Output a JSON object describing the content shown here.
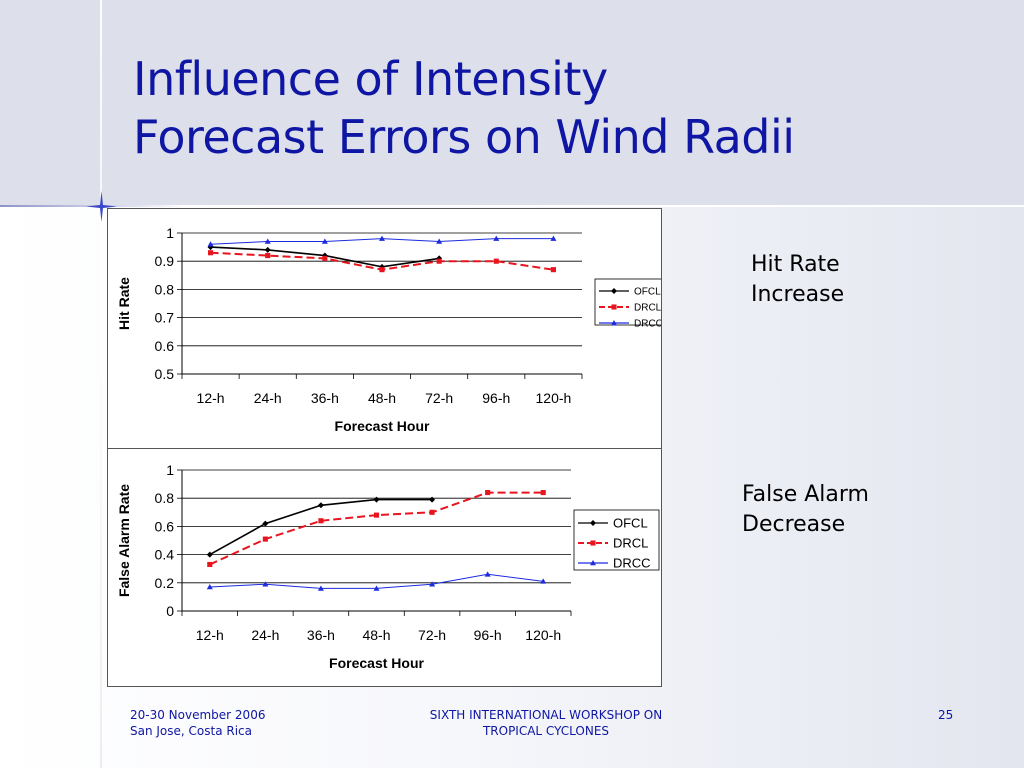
{
  "slide": {
    "title_line1": "Influence of Intensity",
    "title_line2": "Forecast Errors on Wind Radii",
    "note_hit_line1": "Hit Rate",
    "note_hit_line2": "Increase",
    "note_fa_line1": "False Alarm",
    "note_fa_line2": "Decrease",
    "footer_left_line1": "20-30 November 2006",
    "footer_left_line2": "San Jose, Costa Rica",
    "footer_center_line1": "SIXTH INTERNATIONAL WORKSHOP ON",
    "footer_center_line2": "TROPICAL CYCLONES",
    "page_number": "25"
  },
  "colors": {
    "title": "#0e16a3",
    "ofcl": "#000000",
    "drcl": "#e8141e",
    "drcc": "#1c2be0"
  },
  "chart_data": [
    {
      "type": "line",
      "title": "",
      "xlabel": "Forecast Hour",
      "ylabel": "Hit Rate",
      "categories": [
        "12-h",
        "24-h",
        "36-h",
        "48-h",
        "72-h",
        "96-h",
        "120-h"
      ],
      "ylim": [
        0.5,
        1
      ],
      "yticks": [
        0.5,
        0.6,
        0.7,
        0.8,
        0.9,
        1
      ],
      "ytick_labels": [
        "0.5",
        "0.6",
        "0.7",
        "0.8",
        "0.9",
        "1"
      ],
      "grid": true,
      "legend": "right",
      "series": [
        {
          "name": "OFCL",
          "values": [
            0.95,
            0.94,
            0.92,
            0.88,
            0.91,
            null,
            null
          ],
          "color": "#000000",
          "dash": "solid",
          "marker": "diamond"
        },
        {
          "name": "DRCL",
          "values": [
            0.93,
            0.92,
            0.91,
            0.87,
            0.9,
            0.9,
            0.87
          ],
          "color": "#e8141e",
          "dash": "dashed",
          "marker": "square"
        },
        {
          "name": "DRCC",
          "values": [
            0.96,
            0.97,
            0.97,
            0.98,
            0.97,
            0.98,
            0.98
          ],
          "color": "#1c2be0",
          "dash": "solid",
          "marker": "triangle"
        }
      ]
    },
    {
      "type": "line",
      "title": "",
      "xlabel": "Forecast Hour",
      "ylabel": "False Alarm Rate",
      "categories": [
        "12-h",
        "24-h",
        "36-h",
        "48-h",
        "72-h",
        "96-h",
        "120-h"
      ],
      "ylim": [
        0,
        1
      ],
      "yticks": [
        0,
        0.2,
        0.4,
        0.6,
        0.8,
        1
      ],
      "ytick_labels": [
        "0",
        "0.2",
        "0.4",
        "0.6",
        "0.8",
        "1"
      ],
      "grid": true,
      "legend": "right",
      "series": [
        {
          "name": "OFCL",
          "values": [
            0.4,
            0.62,
            0.75,
            0.79,
            0.79,
            null,
            null
          ],
          "color": "#000000",
          "dash": "solid",
          "marker": "diamond"
        },
        {
          "name": "DRCL",
          "values": [
            0.33,
            0.51,
            0.64,
            0.68,
            0.7,
            0.84,
            0.84
          ],
          "color": "#e8141e",
          "dash": "dashed",
          "marker": "square"
        },
        {
          "name": "DRCC",
          "values": [
            0.17,
            0.19,
            0.16,
            0.16,
            0.19,
            0.26,
            0.21
          ],
          "color": "#1c2be0",
          "dash": "solid",
          "marker": "triangle"
        }
      ]
    }
  ]
}
